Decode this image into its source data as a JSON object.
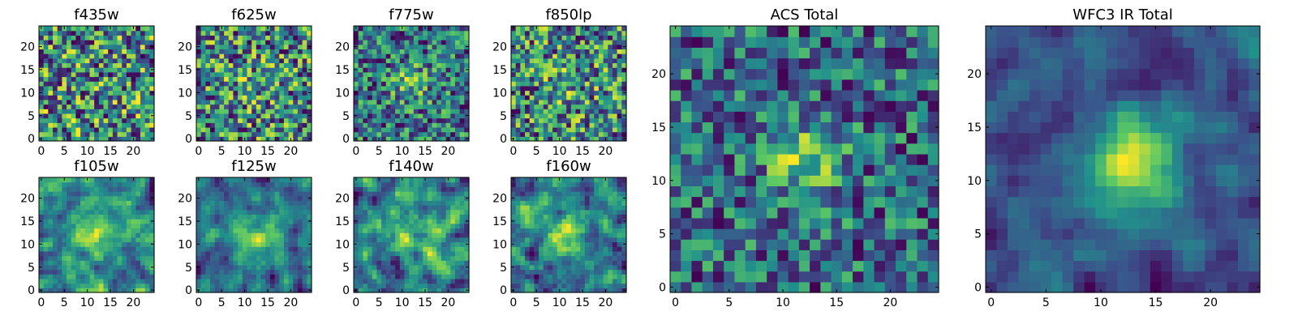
{
  "chart_data": [
    {
      "type": "heatmap",
      "title": "f435w",
      "grid_size": 25,
      "xlim": [
        0,
        24
      ],
      "ylim": [
        0,
        24
      ],
      "xticks": [
        0,
        5,
        10,
        15,
        20
      ],
      "yticks": [
        0,
        5,
        10,
        15,
        20
      ],
      "seed": 11,
      "blob": [
        12,
        12,
        0.0,
        4
      ],
      "noise": 1.0,
      "smooth": 0
    },
    {
      "type": "heatmap",
      "title": "f625w",
      "grid_size": 25,
      "xlim": [
        0,
        24
      ],
      "ylim": [
        0,
        24
      ],
      "xticks": [
        0,
        5,
        10,
        15,
        20
      ],
      "yticks": [
        0,
        5,
        10,
        15,
        20
      ],
      "seed": 23,
      "blob": [
        12,
        12,
        0.1,
        4
      ],
      "noise": 1.0,
      "smooth": 0
    },
    {
      "type": "heatmap",
      "title": "f775w",
      "grid_size": 25,
      "xlim": [
        0,
        24
      ],
      "ylim": [
        0,
        24
      ],
      "xticks": [
        0,
        5,
        10,
        15,
        20
      ],
      "yticks": [
        0,
        5,
        10,
        15,
        20
      ],
      "seed": 37,
      "blob": [
        12,
        12,
        0.35,
        3
      ],
      "noise": 1.0,
      "smooth": 0
    },
    {
      "type": "heatmap",
      "title": "f850lp",
      "grid_size": 25,
      "xlim": [
        0,
        24
      ],
      "ylim": [
        0,
        24
      ],
      "xticks": [
        0,
        5,
        10,
        15,
        20
      ],
      "yticks": [
        0,
        5,
        10,
        15,
        20
      ],
      "seed": 41,
      "blob": [
        12,
        12,
        0.1,
        4
      ],
      "noise": 1.0,
      "smooth": 0
    },
    {
      "type": "heatmap",
      "title": "f105w",
      "grid_size": 25,
      "xlim": [
        0,
        24
      ],
      "ylim": [
        0,
        24
      ],
      "xticks": [
        0,
        5,
        10,
        15,
        20
      ],
      "yticks": [
        0,
        5,
        10,
        15,
        20
      ],
      "seed": 53,
      "blob": [
        12,
        12,
        0.3,
        4
      ],
      "noise": 1.0,
      "smooth": 1
    },
    {
      "type": "heatmap",
      "title": "f125w",
      "grid_size": 25,
      "xlim": [
        0,
        24
      ],
      "ylim": [
        0,
        24
      ],
      "xticks": [
        0,
        5,
        10,
        15,
        20
      ],
      "yticks": [
        0,
        5,
        10,
        15,
        20
      ],
      "seed": 67,
      "blob": [
        13,
        12,
        0.45,
        4
      ],
      "noise": 1.0,
      "smooth": 1
    },
    {
      "type": "heatmap",
      "title": "f140w",
      "grid_size": 25,
      "xlim": [
        0,
        24
      ],
      "ylim": [
        0,
        24
      ],
      "xticks": [
        0,
        5,
        10,
        15,
        20
      ],
      "yticks": [
        0,
        5,
        10,
        15,
        20
      ],
      "seed": 79,
      "blob": [
        12,
        12,
        0.35,
        4
      ],
      "noise": 1.0,
      "smooth": 1
    },
    {
      "type": "heatmap",
      "title": "f160w",
      "grid_size": 25,
      "xlim": [
        0,
        24
      ],
      "ylim": [
        0,
        24
      ],
      "xticks": [
        0,
        5,
        10,
        15,
        20
      ],
      "yticks": [
        0,
        5,
        10,
        15,
        20
      ],
      "seed": 83,
      "blob": [
        12,
        12,
        0.55,
        4
      ],
      "noise": 1.0,
      "smooth": 1
    },
    {
      "type": "heatmap",
      "title": "ACS Total",
      "grid_size": 25,
      "xlim": [
        0,
        24
      ],
      "ylim": [
        0,
        24
      ],
      "xticks": [
        0,
        5,
        10,
        15,
        20
      ],
      "yticks": [
        0,
        5,
        10,
        15,
        20
      ],
      "seed": 97,
      "blob": [
        12,
        12,
        0.5,
        2.5
      ],
      "noise": 0.85,
      "smooth": 0
    },
    {
      "type": "heatmap",
      "title": "WFC3 IR Total",
      "grid_size": 25,
      "xlim": [
        0,
        24
      ],
      "ylim": [
        0,
        24
      ],
      "xticks": [
        0,
        5,
        10,
        15,
        20
      ],
      "yticks": [
        0,
        5,
        10,
        15,
        20
      ],
      "seed": 101,
      "blob": [
        13,
        12,
        0.85,
        3.5
      ],
      "noise": 0.75,
      "smooth": 1
    }
  ],
  "colors": {
    "colormap": [
      "#440154",
      "#3b528b",
      "#21918c",
      "#5ec962",
      "#fde725"
    ],
    "background": "#ffffff",
    "axis": "#000000"
  }
}
